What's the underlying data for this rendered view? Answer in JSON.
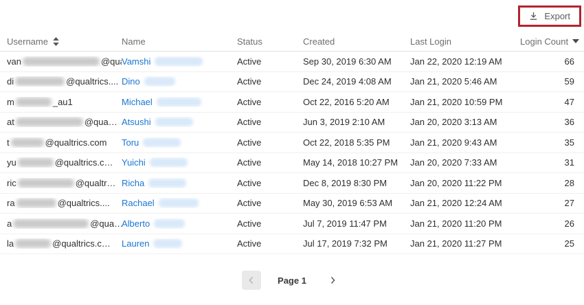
{
  "toolbar": {
    "export_label": "Export"
  },
  "colors": {
    "annotation_red": "#b3232e",
    "link_blue": "#1976d2",
    "header_text": "#6e6e6e",
    "cell_text": "#2e2e2e"
  },
  "table": {
    "columns": [
      {
        "id": "username",
        "label": "Username",
        "sort": "updown",
        "align": "left"
      },
      {
        "id": "name",
        "label": "Name",
        "sort": "none",
        "align": "left"
      },
      {
        "id": "status",
        "label": "Status",
        "sort": "none",
        "align": "left"
      },
      {
        "id": "created",
        "label": "Created",
        "sort": "none",
        "align": "left"
      },
      {
        "id": "last_login",
        "label": "Last Login",
        "sort": "none",
        "align": "left"
      },
      {
        "id": "login_count",
        "label": "Login Count",
        "sort": "desc",
        "align": "right"
      }
    ],
    "rows": [
      {
        "u_prefix": "van",
        "u_blur": 112,
        "u_suffix": "@qua…",
        "name": "Vamshi",
        "n_blur": 70,
        "status": "Active",
        "created": "Sep 30, 2019 6:30 AM",
        "last_login": "Jan 22, 2020 12:19 AM",
        "login_count": 66
      },
      {
        "u_prefix": "di",
        "u_blur": 72,
        "u_suffix": "@qualtrics....",
        "name": "Dino",
        "n_blur": 45,
        "status": "Active",
        "created": "Dec 24, 2019 4:08 AM",
        "last_login": "Jan 21, 2020 5:46 AM",
        "login_count": 59
      },
      {
        "u_prefix": "m",
        "u_blur": 52,
        "u_suffix": "_au1",
        "name": "Michael",
        "n_blur": 65,
        "status": "Active",
        "created": "Oct 22, 2016 5:20 AM",
        "last_login": "Jan 21, 2020 10:59 PM",
        "login_count": 47
      },
      {
        "u_prefix": "at",
        "u_blur": 98,
        "u_suffix": "@qua…",
        "name": "Atsushi",
        "n_blur": 55,
        "status": "Active",
        "created": "Jun 3, 2019 2:10 AM",
        "last_login": "Jan 20, 2020 3:13 AM",
        "login_count": 36
      },
      {
        "u_prefix": "t",
        "u_blur": 48,
        "u_suffix": "@qualtrics.com",
        "name": "Toru",
        "n_blur": 55,
        "status": "Active",
        "created": "Oct 22, 2018 5:35 PM",
        "last_login": "Jan 21, 2020 9:43 AM",
        "login_count": 35
      },
      {
        "u_prefix": "yu",
        "u_blur": 52,
        "u_suffix": "@qualtrics.c…",
        "name": "Yuichi",
        "n_blur": 55,
        "status": "Active",
        "created": "May 14, 2018 10:27 PM",
        "last_login": "Jan 20, 2020 7:33 AM",
        "login_count": 31
      },
      {
        "u_prefix": "ric",
        "u_blur": 82,
        "u_suffix": "@qualtr…",
        "name": "Richa",
        "n_blur": 55,
        "status": "Active",
        "created": "Dec 8, 2019 8:30 PM",
        "last_login": "Jan 20, 2020 11:22 PM",
        "login_count": 28
      },
      {
        "u_prefix": "ra",
        "u_blur": 58,
        "u_suffix": "@qualtrics....",
        "name": "Rachael",
        "n_blur": 58,
        "status": "Active",
        "created": "May 30, 2019 6:53 AM",
        "last_login": "Jan 21, 2020 12:24 AM",
        "login_count": 27
      },
      {
        "u_prefix": "a",
        "u_blur": 110,
        "u_suffix": "@qua…",
        "name": "Alberto",
        "n_blur": 45,
        "status": "Active",
        "created": "Jul 7, 2019 11:47 PM",
        "last_login": "Jan 21, 2020 11:20 PM",
        "login_count": 26
      },
      {
        "u_prefix": "la",
        "u_blur": 52,
        "u_suffix": "@qualtrics.c…",
        "name": "Lauren",
        "n_blur": 42,
        "status": "Active",
        "created": "Jul 17, 2019 7:32 PM",
        "last_login": "Jan 21, 2020 11:27 PM",
        "login_count": 25
      }
    ]
  },
  "pagination": {
    "page_label": "Page 1"
  }
}
